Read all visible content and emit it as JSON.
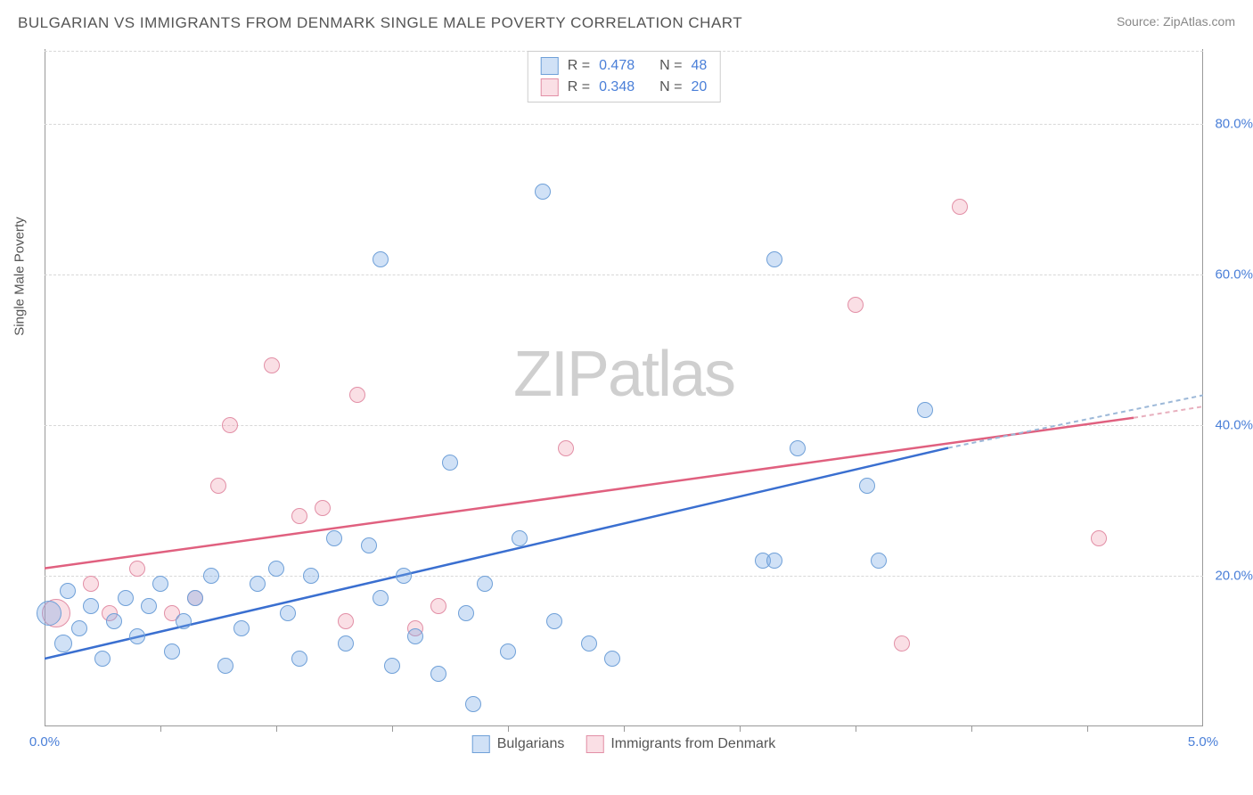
{
  "title": "BULGARIAN VS IMMIGRANTS FROM DENMARK SINGLE MALE POVERTY CORRELATION CHART",
  "source": "Source: ZipAtlas.com",
  "watermark_a": "ZIP",
  "watermark_b": "atlas",
  "chart": {
    "type": "scatter",
    "y_axis_label": "Single Male Poverty",
    "xlim": [
      0.0,
      5.0
    ],
    "ylim": [
      0.0,
      90.0
    ],
    "x_ticks": [
      0.0,
      5.0
    ],
    "x_tick_labels": [
      "0.0%",
      "5.0%"
    ],
    "x_minor_ticks": [
      0.5,
      1.0,
      1.5,
      2.0,
      2.5,
      3.0,
      3.5,
      4.0,
      4.5
    ],
    "y_ticks": [
      20.0,
      40.0,
      60.0,
      80.0
    ],
    "y_tick_labels": [
      "20.0%",
      "40.0%",
      "60.0%",
      "80.0%"
    ],
    "grid_color": "#d8d8d8",
    "background_color": "#ffffff",
    "axis_label_color": "#4a7fd8",
    "title_color": "#555555",
    "title_fontsize": 17,
    "axis_tick_fontsize": 15,
    "series": {
      "bulgarians": {
        "label": "Bulgarians",
        "marker_fill": "rgba(120,170,230,0.35)",
        "marker_stroke": "#6fa0d8",
        "marker_radius_default": 9,
        "line_color": "#3a6fd0",
        "line_dash_ext_color": "#9cb8d8",
        "reg_line": {
          "x1": 0.0,
          "y1": 9.0,
          "x2": 3.9,
          "y2": 37.0,
          "x2_ext": 5.0,
          "y2_ext": 44.0
        },
        "R_label": "R =",
        "R": "0.478",
        "N_label": "N =",
        "N": "48",
        "points": [
          {
            "x": 0.02,
            "y": 15,
            "r": 14
          },
          {
            "x": 0.08,
            "y": 11,
            "r": 10
          },
          {
            "x": 0.1,
            "y": 18,
            "r": 9
          },
          {
            "x": 0.15,
            "y": 13,
            "r": 9
          },
          {
            "x": 0.2,
            "y": 16,
            "r": 9
          },
          {
            "x": 0.25,
            "y": 9,
            "r": 9
          },
          {
            "x": 0.3,
            "y": 14,
            "r": 9
          },
          {
            "x": 0.35,
            "y": 17,
            "r": 9
          },
          {
            "x": 0.4,
            "y": 12,
            "r": 9
          },
          {
            "x": 0.45,
            "y": 16,
            "r": 9
          },
          {
            "x": 0.5,
            "y": 19,
            "r": 9
          },
          {
            "x": 0.55,
            "y": 10,
            "r": 9
          },
          {
            "x": 0.6,
            "y": 14,
            "r": 9
          },
          {
            "x": 0.65,
            "y": 17,
            "r": 9
          },
          {
            "x": 0.72,
            "y": 20,
            "r": 9
          },
          {
            "x": 0.78,
            "y": 8,
            "r": 9
          },
          {
            "x": 0.85,
            "y": 13,
            "r": 9
          },
          {
            "x": 0.92,
            "y": 19,
            "r": 9
          },
          {
            "x": 1.0,
            "y": 21,
            "r": 9
          },
          {
            "x": 1.05,
            "y": 15,
            "r": 9
          },
          {
            "x": 1.1,
            "y": 9,
            "r": 9
          },
          {
            "x": 1.15,
            "y": 20,
            "r": 9
          },
          {
            "x": 1.25,
            "y": 25,
            "r": 9
          },
          {
            "x": 1.3,
            "y": 11,
            "r": 9
          },
          {
            "x": 1.4,
            "y": 24,
            "r": 9
          },
          {
            "x": 1.45,
            "y": 17,
            "r": 9
          },
          {
            "x": 1.45,
            "y": 62,
            "r": 9
          },
          {
            "x": 1.5,
            "y": 8,
            "r": 9
          },
          {
            "x": 1.55,
            "y": 20,
            "r": 9
          },
          {
            "x": 1.6,
            "y": 12,
            "r": 9
          },
          {
            "x": 1.7,
            "y": 7,
            "r": 9
          },
          {
            "x": 1.75,
            "y": 35,
            "r": 9
          },
          {
            "x": 1.82,
            "y": 15,
            "r": 9
          },
          {
            "x": 1.85,
            "y": 3,
            "r": 9
          },
          {
            "x": 1.9,
            "y": 19,
            "r": 9
          },
          {
            "x": 2.0,
            "y": 10,
            "r": 9
          },
          {
            "x": 2.05,
            "y": 25,
            "r": 9
          },
          {
            "x": 2.15,
            "y": 71,
            "r": 9
          },
          {
            "x": 2.2,
            "y": 14,
            "r": 9
          },
          {
            "x": 2.35,
            "y": 11,
            "r": 9
          },
          {
            "x": 2.45,
            "y": 9,
            "r": 9
          },
          {
            "x": 3.1,
            "y": 22,
            "r": 9
          },
          {
            "x": 3.15,
            "y": 62,
            "r": 9
          },
          {
            "x": 3.15,
            "y": 22,
            "r": 9
          },
          {
            "x": 3.25,
            "y": 37,
            "r": 9
          },
          {
            "x": 3.55,
            "y": 32,
            "r": 9
          },
          {
            "x": 3.6,
            "y": 22,
            "r": 9
          },
          {
            "x": 3.8,
            "y": 42,
            "r": 9
          }
        ]
      },
      "denmark": {
        "label": "Immigrants from Denmark",
        "marker_fill": "rgba(240,150,170,0.30)",
        "marker_stroke": "#e28fa6",
        "marker_radius_default": 9,
        "line_color": "#e0607f",
        "line_dash_ext_color": "#e8b0be",
        "reg_line": {
          "x1": 0.0,
          "y1": 21.0,
          "x2": 4.7,
          "y2": 41.0,
          "x2_ext": 5.0,
          "y2_ext": 42.5
        },
        "R_label": "R =",
        "R": "0.348",
        "N_label": "N =",
        "N": "20",
        "points": [
          {
            "x": 0.05,
            "y": 15,
            "r": 16
          },
          {
            "x": 0.2,
            "y": 19,
            "r": 9
          },
          {
            "x": 0.28,
            "y": 15,
            "r": 9
          },
          {
            "x": 0.4,
            "y": 21,
            "r": 9
          },
          {
            "x": 0.55,
            "y": 15,
            "r": 9
          },
          {
            "x": 0.65,
            "y": 17,
            "r": 9
          },
          {
            "x": 0.75,
            "y": 32,
            "r": 9
          },
          {
            "x": 0.8,
            "y": 40,
            "r": 9
          },
          {
            "x": 0.98,
            "y": 48,
            "r": 9
          },
          {
            "x": 1.1,
            "y": 28,
            "r": 9
          },
          {
            "x": 1.2,
            "y": 29,
            "r": 9
          },
          {
            "x": 1.3,
            "y": 14,
            "r": 9
          },
          {
            "x": 1.35,
            "y": 44,
            "r": 9
          },
          {
            "x": 1.6,
            "y": 13,
            "r": 9
          },
          {
            "x": 1.7,
            "y": 16,
            "r": 9
          },
          {
            "x": 2.25,
            "y": 37,
            "r": 9
          },
          {
            "x": 3.5,
            "y": 56,
            "r": 9
          },
          {
            "x": 3.7,
            "y": 11,
            "r": 9
          },
          {
            "x": 3.95,
            "y": 69,
            "r": 9
          },
          {
            "x": 4.55,
            "y": 25,
            "r": 9
          }
        ]
      }
    }
  }
}
